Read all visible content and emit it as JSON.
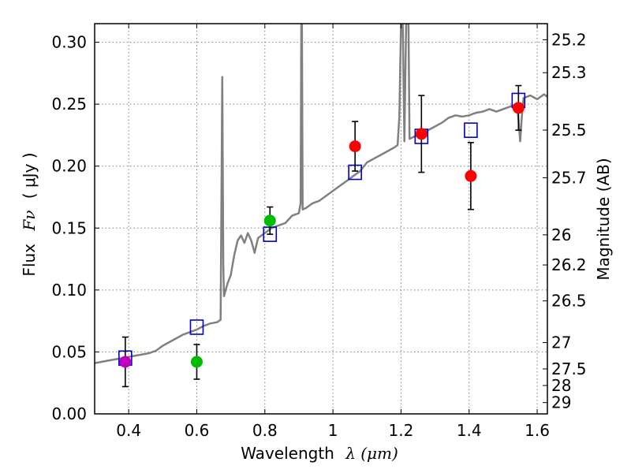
{
  "chart_data": {
    "type": "scatter",
    "xlabel_text": "Wavelength",
    "xlabel_symbol": "λ (μm)",
    "ylabel_text": "Flux",
    "ylabel_symbol": "Fν",
    "ylabel_unit": "( μJy )",
    "y2label": "Magnitude (AB)",
    "xlim": [
      0.3,
      1.63
    ],
    "ylim": [
      0.0,
      0.315
    ],
    "grid": true,
    "x_ticks": [
      0.4,
      0.6,
      0.8,
      1.0,
      1.2,
      1.4,
      1.6
    ],
    "x_tick_labels": [
      "0.4",
      "0.6",
      "0.8",
      "1",
      "1.2",
      "1.4",
      "1.6"
    ],
    "y_ticks": [
      0.0,
      0.05,
      0.1,
      0.15,
      0.2,
      0.25,
      0.3
    ],
    "y_tick_labels": [
      "0.00",
      "0.05",
      "0.10",
      "0.15",
      "0.20",
      "0.25",
      "0.30"
    ],
    "magnitude_ticks": [
      {
        "mag": 25.2,
        "label": "25.2"
      },
      {
        "mag": 25.3,
        "label": "25.3"
      },
      {
        "mag": 25.5,
        "label": "25.5"
      },
      {
        "mag": 25.7,
        "label": "25.7"
      },
      {
        "mag": 26.0,
        "label": "26"
      },
      {
        "mag": 26.2,
        "label": "26.2"
      },
      {
        "mag": 26.5,
        "label": "26.5"
      },
      {
        "mag": 27.0,
        "label": "27"
      },
      {
        "mag": 27.5,
        "label": "27.5"
      },
      {
        "mag": 28.0,
        "label": "28"
      },
      {
        "mag": 29.0,
        "label": "29"
      }
    ],
    "colors": {
      "model": "#808080",
      "purple": "#bf00bf",
      "green": "#00bb00",
      "red": "#ff0000",
      "model_box": "#0000cc",
      "errorbar": "#000000"
    },
    "model_spectrum": [
      [
        0.3,
        0.041
      ],
      [
        0.32,
        0.042
      ],
      [
        0.34,
        0.043
      ],
      [
        0.36,
        0.044
      ],
      [
        0.38,
        0.045
      ],
      [
        0.4,
        0.046
      ],
      [
        0.42,
        0.047
      ],
      [
        0.44,
        0.048
      ],
      [
        0.46,
        0.049
      ],
      [
        0.48,
        0.051
      ],
      [
        0.5,
        0.055
      ],
      [
        0.52,
        0.058
      ],
      [
        0.54,
        0.061
      ],
      [
        0.56,
        0.064
      ],
      [
        0.58,
        0.066
      ],
      [
        0.6,
        0.068
      ],
      [
        0.62,
        0.071
      ],
      [
        0.64,
        0.073
      ],
      [
        0.66,
        0.074
      ],
      [
        0.67,
        0.076
      ],
      [
        0.672,
        0.15
      ],
      [
        0.675,
        0.272
      ],
      [
        0.678,
        0.12
      ],
      [
        0.68,
        0.095
      ],
      [
        0.69,
        0.105
      ],
      [
        0.7,
        0.112
      ],
      [
        0.71,
        0.128
      ],
      [
        0.72,
        0.14
      ],
      [
        0.73,
        0.144
      ],
      [
        0.74,
        0.138
      ],
      [
        0.75,
        0.146
      ],
      [
        0.76,
        0.14
      ],
      [
        0.77,
        0.13
      ],
      [
        0.78,
        0.142
      ],
      [
        0.79,
        0.144
      ],
      [
        0.8,
        0.146
      ],
      [
        0.82,
        0.15
      ],
      [
        0.84,
        0.152
      ],
      [
        0.86,
        0.154
      ],
      [
        0.88,
        0.16
      ],
      [
        0.9,
        0.162
      ],
      [
        0.905,
        0.17
      ],
      [
        0.907,
        0.315
      ],
      [
        0.909,
        0.315
      ],
      [
        0.911,
        0.165
      ],
      [
        0.92,
        0.166
      ],
      [
        0.94,
        0.17
      ],
      [
        0.96,
        0.172
      ],
      [
        0.98,
        0.176
      ],
      [
        1.0,
        0.18
      ],
      [
        1.02,
        0.184
      ],
      [
        1.04,
        0.188
      ],
      [
        1.06,
        0.192
      ],
      [
        1.08,
        0.196
      ],
      [
        1.1,
        0.203
      ],
      [
        1.12,
        0.206
      ],
      [
        1.14,
        0.209
      ],
      [
        1.16,
        0.212
      ],
      [
        1.18,
        0.215
      ],
      [
        1.19,
        0.217
      ],
      [
        1.195,
        0.24
      ],
      [
        1.2,
        0.315
      ],
      [
        1.205,
        0.315
      ],
      [
        1.21,
        0.22
      ],
      [
        1.215,
        0.315
      ],
      [
        1.222,
        0.315
      ],
      [
        1.225,
        0.222
      ],
      [
        1.24,
        0.224
      ],
      [
        1.26,
        0.226
      ],
      [
        1.28,
        0.229
      ],
      [
        1.3,
        0.232
      ],
      [
        1.32,
        0.235
      ],
      [
        1.34,
        0.239
      ],
      [
        1.36,
        0.241
      ],
      [
        1.38,
        0.24
      ],
      [
        1.4,
        0.241
      ],
      [
        1.42,
        0.243
      ],
      [
        1.44,
        0.244
      ],
      [
        1.46,
        0.246
      ],
      [
        1.48,
        0.244
      ],
      [
        1.5,
        0.246
      ],
      [
        1.52,
        0.248
      ],
      [
        1.54,
        0.25
      ],
      [
        1.545,
        0.238
      ],
      [
        1.55,
        0.22
      ],
      [
        1.555,
        0.24
      ],
      [
        1.56,
        0.255
      ],
      [
        1.58,
        0.257
      ],
      [
        1.6,
        0.254
      ],
      [
        1.62,
        0.258
      ],
      [
        1.63,
        0.256
      ]
    ],
    "model_points": [
      {
        "x": 0.39,
        "y": 0.045
      },
      {
        "x": 0.6,
        "y": 0.07
      },
      {
        "x": 0.815,
        "y": 0.145
      },
      {
        "x": 1.065,
        "y": 0.195
      },
      {
        "x": 1.26,
        "y": 0.224
      },
      {
        "x": 1.405,
        "y": 0.229
      },
      {
        "x": 1.545,
        "y": 0.253
      }
    ],
    "observed_points": [
      {
        "x": 0.39,
        "y": 0.042,
        "err": 0.02,
        "color": "purple"
      },
      {
        "x": 0.6,
        "y": 0.042,
        "err": 0.014,
        "color": "green"
      },
      {
        "x": 0.815,
        "y": 0.156,
        "err": 0.011,
        "color": "green"
      },
      {
        "x": 1.065,
        "y": 0.216,
        "err": 0.02,
        "color": "red"
      },
      {
        "x": 1.26,
        "y": 0.226,
        "err": 0.031,
        "color": "red"
      },
      {
        "x": 1.405,
        "y": 0.192,
        "err": 0.027,
        "color": "red"
      },
      {
        "x": 1.545,
        "y": 0.247,
        "err": 0.018,
        "color": "red"
      }
    ]
  }
}
